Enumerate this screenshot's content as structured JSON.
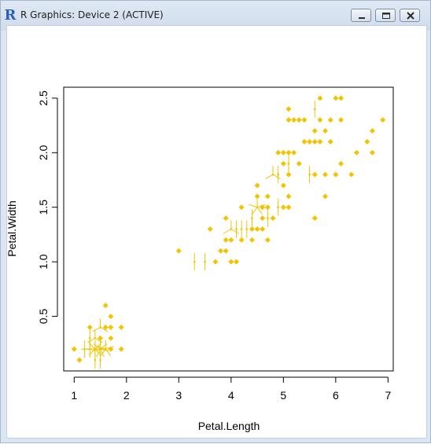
{
  "window": {
    "title": "R Graphics: Device 2 (ACTIVE)",
    "icon": "r-logo-icon",
    "buttons": [
      "minimize-icon",
      "maximize-icon",
      "close-icon"
    ]
  },
  "chart_data": {
    "type": "scatter",
    "xlabel": "Petal.Length",
    "ylabel": "Petal.Width",
    "xlim": [
      0.8,
      7.1
    ],
    "ylim": [
      0.0,
      2.6
    ],
    "xticks": [
      "1",
      "2",
      "3",
      "4",
      "5",
      "6",
      "7"
    ],
    "yticks": [
      "0.5",
      "1.0",
      "1.5",
      "2.0",
      "2.5"
    ],
    "grid": false,
    "legend": "none",
    "color": "#f2c400",
    "series": [
      {
        "points": [
          [
            1.4,
            0.2
          ],
          [
            1.4,
            0.2
          ],
          [
            1.3,
            0.2
          ],
          [
            1.5,
            0.2
          ],
          [
            1.4,
            0.2
          ],
          [
            1.7,
            0.4
          ],
          [
            1.4,
            0.3
          ],
          [
            1.5,
            0.2
          ],
          [
            1.4,
            0.2
          ],
          [
            1.5,
            0.1
          ],
          [
            1.5,
            0.2
          ],
          [
            1.6,
            0.2
          ],
          [
            1.4,
            0.1
          ],
          [
            1.1,
            0.1
          ],
          [
            1.2,
            0.2
          ],
          [
            1.5,
            0.4
          ],
          [
            1.3,
            0.4
          ],
          [
            1.4,
            0.3
          ],
          [
            1.7,
            0.3
          ],
          [
            1.5,
            0.3
          ],
          [
            1.7,
            0.2
          ],
          [
            1.5,
            0.4
          ],
          [
            1.0,
            0.2
          ],
          [
            1.7,
            0.5
          ],
          [
            1.9,
            0.2
          ],
          [
            1.6,
            0.2
          ],
          [
            1.6,
            0.4
          ],
          [
            1.5,
            0.2
          ],
          [
            1.4,
            0.2
          ],
          [
            1.6,
            0.2
          ],
          [
            1.6,
            0.2
          ],
          [
            1.5,
            0.4
          ],
          [
            1.5,
            0.1
          ],
          [
            1.4,
            0.2
          ],
          [
            1.5,
            0.2
          ],
          [
            1.2,
            0.2
          ],
          [
            1.3,
            0.2
          ],
          [
            1.4,
            0.1
          ],
          [
            1.3,
            0.2
          ],
          [
            1.5,
            0.2
          ],
          [
            1.3,
            0.3
          ],
          [
            1.3,
            0.3
          ],
          [
            1.3,
            0.2
          ],
          [
            1.6,
            0.6
          ],
          [
            1.9,
            0.4
          ],
          [
            1.4,
            0.3
          ],
          [
            1.6,
            0.2
          ],
          [
            1.4,
            0.2
          ],
          [
            1.5,
            0.2
          ],
          [
            1.4,
            0.2
          ],
          [
            4.7,
            1.4
          ],
          [
            4.5,
            1.5
          ],
          [
            4.9,
            1.5
          ],
          [
            4.0,
            1.3
          ],
          [
            4.6,
            1.5
          ],
          [
            4.5,
            1.3
          ],
          [
            4.7,
            1.6
          ],
          [
            3.3,
            1.0
          ],
          [
            4.6,
            1.3
          ],
          [
            3.9,
            1.4
          ],
          [
            3.5,
            1.0
          ],
          [
            4.2,
            1.5
          ],
          [
            4.0,
            1.0
          ],
          [
            4.7,
            1.4
          ],
          [
            3.6,
            1.3
          ],
          [
            4.4,
            1.4
          ],
          [
            4.5,
            1.5
          ],
          [
            4.1,
            1.0
          ],
          [
            4.5,
            1.5
          ],
          [
            3.9,
            1.1
          ],
          [
            4.8,
            1.8
          ],
          [
            4.0,
            1.3
          ],
          [
            4.9,
            1.5
          ],
          [
            4.7,
            1.2
          ],
          [
            4.3,
            1.3
          ],
          [
            4.4,
            1.4
          ],
          [
            4.8,
            1.4
          ],
          [
            5.0,
            1.7
          ],
          [
            4.5,
            1.5
          ],
          [
            3.5,
            1.0
          ],
          [
            3.8,
            1.1
          ],
          [
            3.7,
            1.0
          ],
          [
            3.9,
            1.2
          ],
          [
            5.1,
            1.6
          ],
          [
            4.5,
            1.5
          ],
          [
            4.5,
            1.6
          ],
          [
            4.7,
            1.5
          ],
          [
            4.4,
            1.3
          ],
          [
            4.1,
            1.3
          ],
          [
            4.0,
            1.3
          ],
          [
            4.4,
            1.2
          ],
          [
            4.6,
            1.4
          ],
          [
            4.0,
            1.2
          ],
          [
            3.3,
            1.0
          ],
          [
            4.2,
            1.3
          ],
          [
            4.2,
            1.2
          ],
          [
            4.2,
            1.3
          ],
          [
            4.3,
            1.3
          ],
          [
            3.0,
            1.1
          ],
          [
            4.1,
            1.3
          ],
          [
            6.0,
            2.5
          ],
          [
            5.1,
            1.9
          ],
          [
            5.9,
            2.1
          ],
          [
            5.6,
            1.8
          ],
          [
            5.8,
            2.2
          ],
          [
            6.6,
            2.1
          ],
          [
            4.5,
            1.7
          ],
          [
            6.3,
            1.8
          ],
          [
            5.8,
            1.8
          ],
          [
            6.1,
            2.5
          ],
          [
            5.1,
            2.0
          ],
          [
            5.3,
            1.9
          ],
          [
            5.5,
            2.1
          ],
          [
            5.0,
            2.0
          ],
          [
            5.1,
            2.4
          ],
          [
            5.3,
            2.3
          ],
          [
            5.5,
            1.8
          ],
          [
            6.7,
            2.2
          ],
          [
            6.9,
            2.3
          ],
          [
            5.0,
            1.5
          ],
          [
            5.7,
            2.3
          ],
          [
            4.9,
            2.0
          ],
          [
            6.7,
            2.0
          ],
          [
            4.9,
            1.8
          ],
          [
            5.7,
            2.1
          ],
          [
            6.0,
            1.8
          ],
          [
            4.8,
            1.8
          ],
          [
            4.9,
            1.8
          ],
          [
            5.6,
            2.1
          ],
          [
            5.8,
            1.6
          ],
          [
            6.1,
            1.9
          ],
          [
            6.4,
            2.0
          ],
          [
            5.6,
            2.2
          ],
          [
            5.1,
            1.5
          ],
          [
            5.6,
            1.4
          ],
          [
            6.1,
            2.3
          ],
          [
            5.6,
            2.4
          ],
          [
            5.5,
            1.8
          ],
          [
            4.8,
            1.8
          ],
          [
            5.4,
            2.1
          ],
          [
            5.6,
            2.4
          ],
          [
            5.1,
            2.3
          ],
          [
            5.1,
            1.9
          ],
          [
            5.9,
            2.3
          ],
          [
            5.7,
            2.5
          ],
          [
            5.2,
            2.3
          ],
          [
            5.0,
            1.9
          ],
          [
            5.2,
            2.0
          ],
          [
            5.4,
            2.3
          ],
          [
            5.1,
            1.8
          ]
        ]
      }
    ]
  }
}
